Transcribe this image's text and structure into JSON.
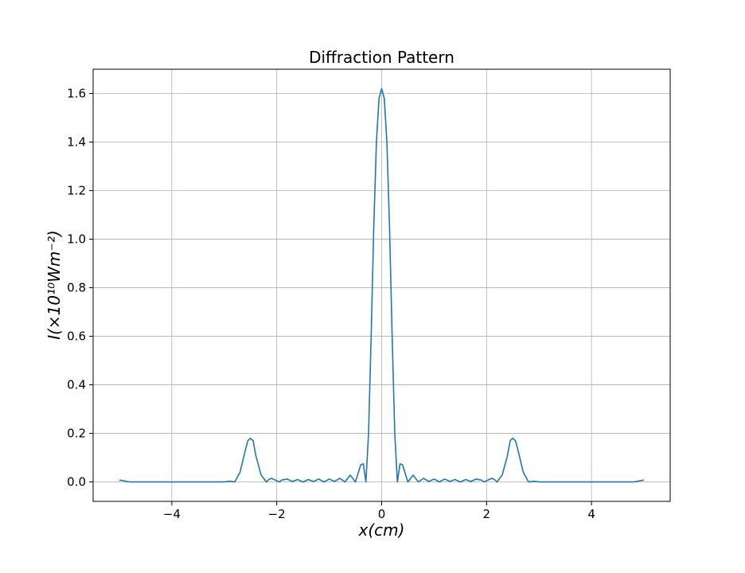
{
  "chart_data": {
    "type": "line",
    "title": "Diffraction Pattern",
    "xlabel": "x(cm)",
    "ylabel": "I(×10¹⁰Wm⁻²)",
    "xlim": [
      -5.5,
      5.5
    ],
    "ylim": [
      -0.08,
      1.7
    ],
    "xticks": [
      -4,
      -2,
      0,
      2,
      4
    ],
    "xtick_labels": [
      "−4",
      "−2",
      "0",
      "2",
      "4"
    ],
    "yticks": [
      0.0,
      0.2,
      0.4,
      0.6,
      0.8,
      1.0,
      1.2,
      1.4,
      1.6
    ],
    "ytick_labels": [
      "0.0",
      "0.2",
      "0.4",
      "0.6",
      "0.8",
      "1.0",
      "1.2",
      "1.4",
      "1.6"
    ],
    "grid": true,
    "line_color": "#1f77b4",
    "series": [
      {
        "x": [
          -5.0,
          -4.8,
          -4.0,
          -3.0,
          -2.9,
          -2.8,
          -2.7,
          -2.6,
          -2.55,
          -2.5,
          -2.45,
          -2.4,
          -2.3,
          -2.2,
          -2.15,
          -2.1,
          -2.0,
          -1.95,
          -1.9,
          -1.8,
          -1.7,
          -1.6,
          -1.5,
          -1.4,
          -1.3,
          -1.2,
          -1.1,
          -1.0,
          -0.9,
          -0.8,
          -0.7,
          -0.6,
          -0.5,
          -0.4,
          -0.35,
          -0.3,
          -0.25,
          -0.2,
          -0.15,
          -0.1,
          -0.05,
          0.0,
          0.05,
          0.1,
          0.15,
          0.2,
          0.25,
          0.3,
          0.35,
          0.4,
          0.5,
          0.6,
          0.7,
          0.8,
          0.9,
          1.0,
          1.1,
          1.2,
          1.3,
          1.4,
          1.5,
          1.6,
          1.7,
          1.8,
          1.9,
          1.95,
          2.0,
          2.1,
          2.15,
          2.2,
          2.3,
          2.4,
          2.45,
          2.5,
          2.55,
          2.6,
          2.7,
          2.8,
          2.9,
          3.0,
          4.0,
          4.8,
          5.0
        ],
        "y": [
          0.008,
          0.0,
          0.0,
          0.0,
          0.003,
          0.0,
          0.04,
          0.13,
          0.17,
          0.18,
          0.17,
          0.11,
          0.03,
          0.0,
          0.01,
          0.015,
          0.005,
          0.0,
          0.008,
          0.012,
          0.002,
          0.01,
          0.0,
          0.01,
          0.002,
          0.012,
          0.0,
          0.012,
          0.002,
          0.015,
          0.0,
          0.028,
          0.0,
          0.07,
          0.075,
          0.0,
          0.2,
          0.6,
          1.05,
          1.4,
          1.58,
          1.62,
          1.58,
          1.4,
          1.05,
          0.6,
          0.2,
          0.0,
          0.075,
          0.07,
          0.0,
          0.028,
          0.0,
          0.015,
          0.002,
          0.012,
          0.0,
          0.012,
          0.002,
          0.01,
          0.0,
          0.01,
          0.002,
          0.012,
          0.008,
          0.0,
          0.005,
          0.015,
          0.01,
          0.0,
          0.03,
          0.11,
          0.17,
          0.18,
          0.17,
          0.13,
          0.04,
          0.0,
          0.003,
          0.0,
          0.0,
          0.0,
          0.008
        ]
      }
    ]
  }
}
